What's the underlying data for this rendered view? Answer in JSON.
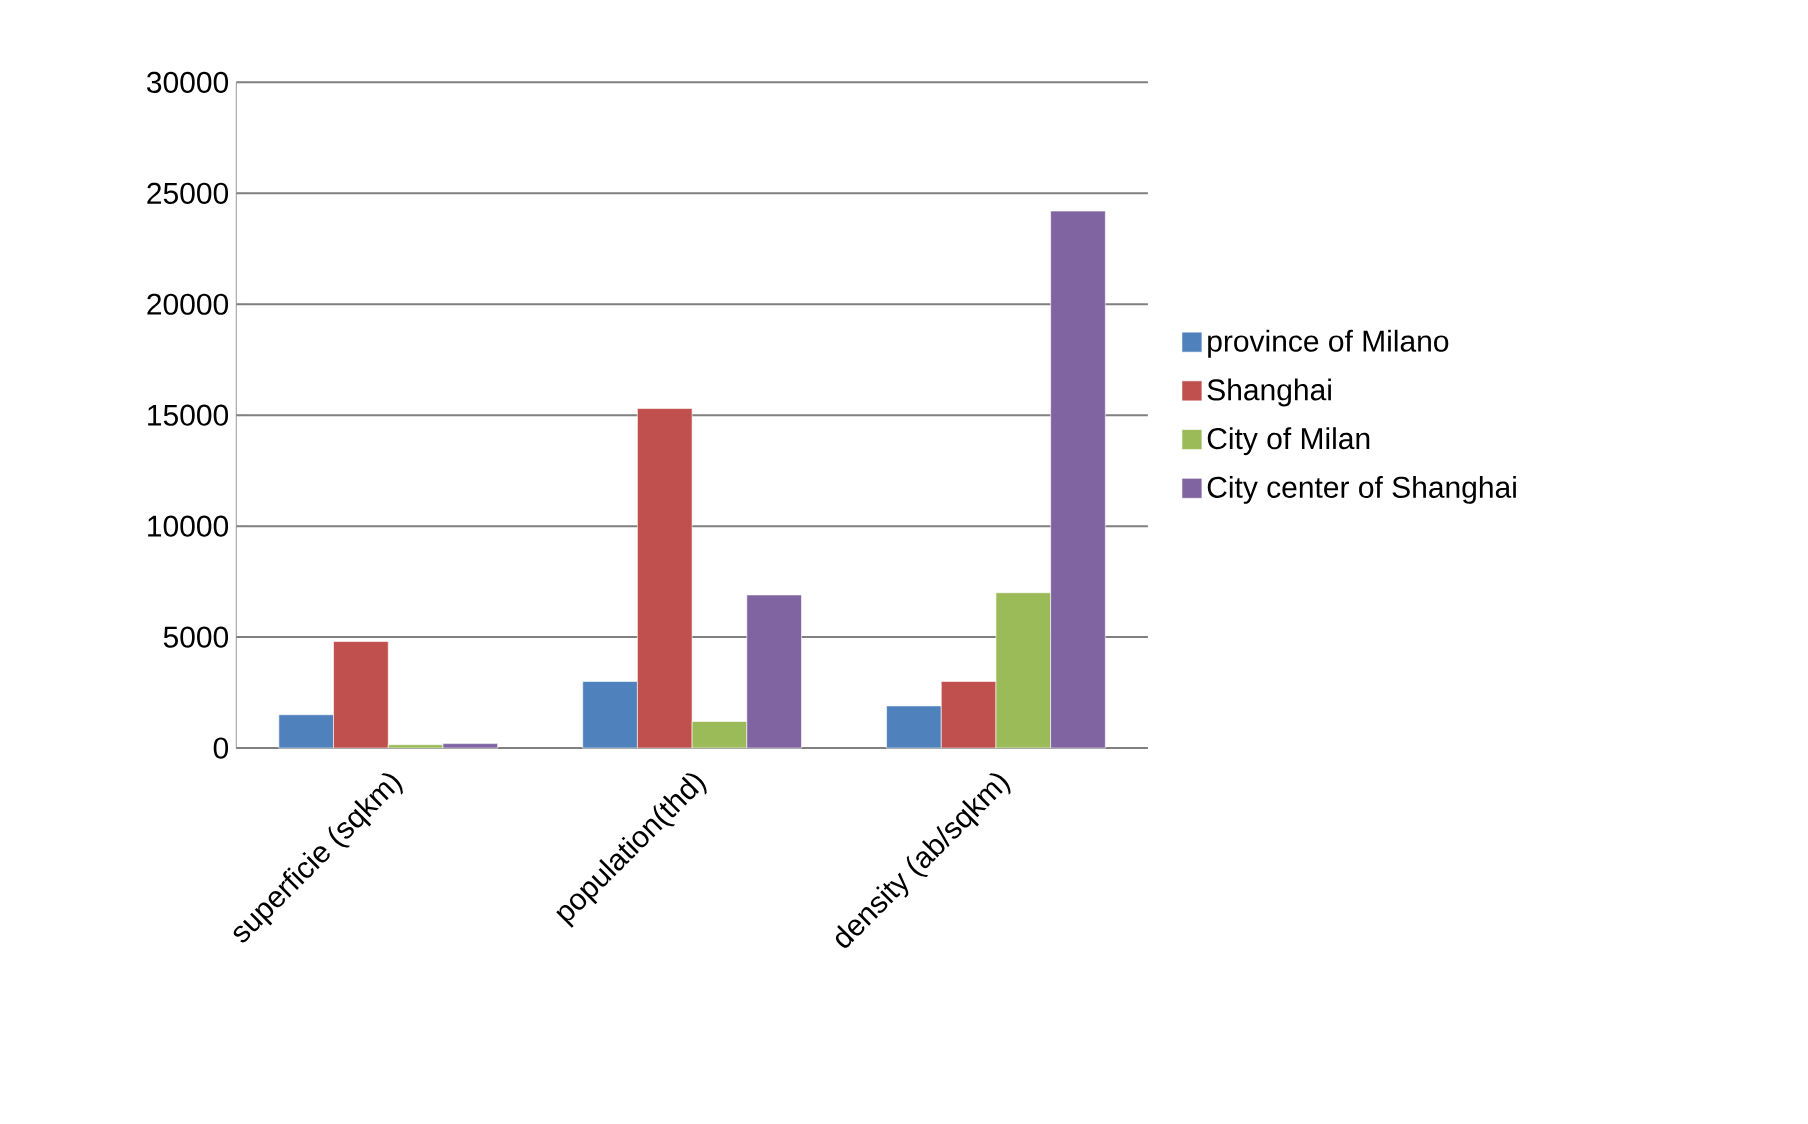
{
  "chart_data": {
    "type": "bar",
    "categories": [
      "superficie (sqkm)",
      "population(thd)",
      "density (ab/sqkm)"
    ],
    "series": [
      {
        "name": "province of Milano",
        "color": "#4f81bd",
        "values": [
          1500,
          3000,
          1900
        ]
      },
      {
        "name": "Shanghai",
        "color": "#c0504d",
        "values": [
          4800,
          15300,
          3000
        ]
      },
      {
        "name": "City of Milan",
        "color": "#9bbb59",
        "values": [
          150,
          1200,
          7000
        ]
      },
      {
        "name": "City center of Shanghai",
        "color": "#8064a2",
        "values": [
          200,
          6900,
          24200
        ]
      }
    ],
    "ylim": [
      0,
      30000
    ],
    "yticks": [
      0,
      5000,
      10000,
      15000,
      20000,
      25000,
      30000
    ],
    "grid": "y",
    "legend": "right"
  }
}
